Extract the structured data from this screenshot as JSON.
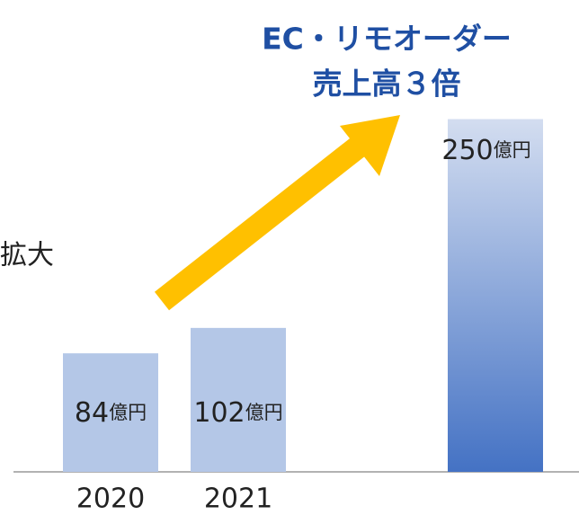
{
  "chart_data": {
    "type": "bar",
    "title": [
      "EC・リモオーダー",
      "売上高３倍"
    ],
    "annotations": [
      "拡大"
    ],
    "categories": [
      "2020",
      "2021",
      null
    ],
    "values": [
      84,
      102,
      250
    ],
    "value_labels": [
      "84億円",
      "102億円",
      "250億円"
    ],
    "colors": [
      "#b4c7e7",
      "#b4c7e7",
      "gradient"
    ],
    "highlight_color": "#4472c4",
    "arrow_color": "#ffc000"
  }
}
